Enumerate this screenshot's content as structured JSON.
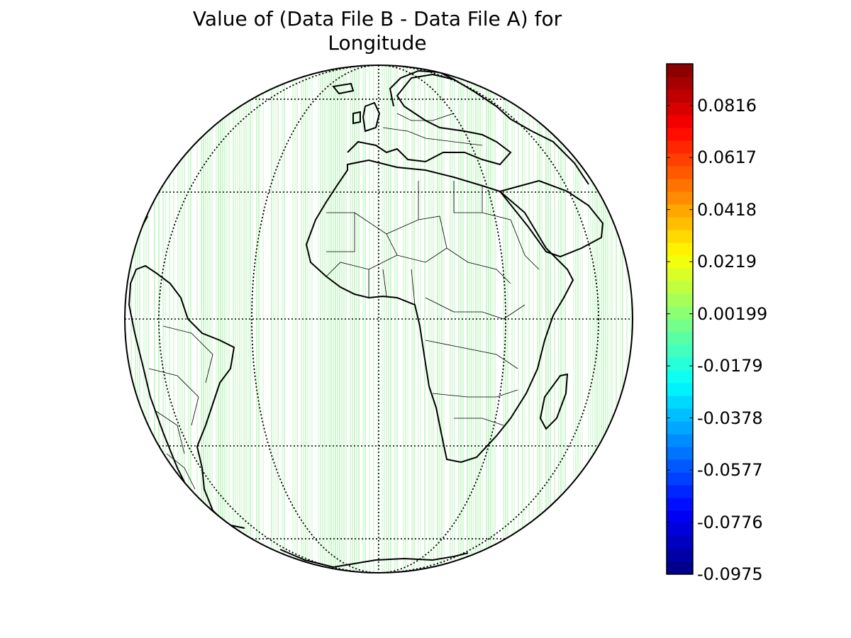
{
  "title_line1": "Value of (Data File B - Data File A) for",
  "title_line2": "Longitude",
  "projection": "orthographic",
  "graticule": {
    "latitudes": [
      -60,
      -30,
      0,
      30,
      60
    ],
    "longitudes": [
      -90,
      -60,
      -30,
      0,
      30,
      60,
      90
    ],
    "style": "dotted"
  },
  "data_fill_color": "#7ee87e",
  "colorbar": {
    "colormap": "jet",
    "orientation": "vertical",
    "location": "right",
    "min": -0.0975,
    "max": 0.0975,
    "ticks": [
      "0.0816",
      "0.0617",
      "0.0418",
      "0.0219",
      "0.00199",
      "-0.0179",
      "-0.0378",
      "-0.0577",
      "-0.0776",
      "-0.0975"
    ]
  }
}
